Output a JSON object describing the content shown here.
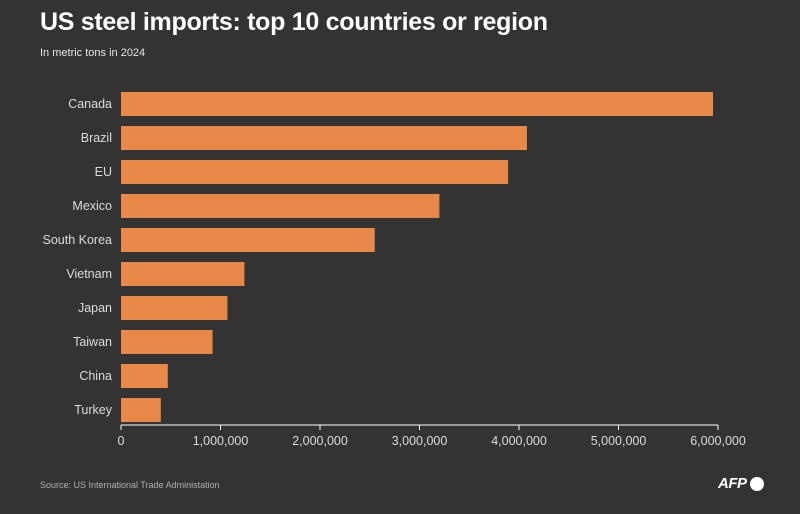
{
  "header": {
    "title": "US steel imports: top 10 countries or region",
    "subtitle": "In metric tons in 2024"
  },
  "footer": {
    "source": "Source: US International Trade Administation",
    "logo_text": "AFP"
  },
  "colors": {
    "background": "#333333",
    "bar": "#E8894A",
    "label": "#dcdcdc",
    "axis": "#ffffff"
  },
  "chart_data": {
    "type": "bar",
    "orientation": "horizontal",
    "categories": [
      "Canada",
      "Brazil",
      "EU",
      "Mexico",
      "South Korea",
      "Vietnam",
      "Japan",
      "Taiwan",
      "China",
      "Turkey"
    ],
    "values": [
      5950000,
      4080000,
      3890000,
      3200000,
      2550000,
      1240000,
      1070000,
      920000,
      470000,
      400000
    ],
    "xlim": [
      0,
      6000000
    ],
    "xticks": [
      0,
      1000000,
      2000000,
      3000000,
      4000000,
      5000000,
      6000000
    ],
    "xtick_labels": [
      "0",
      "1,000,000",
      "2,000,000",
      "3,000,000",
      "4,000,000",
      "5,000,000",
      "6,000,000"
    ],
    "grid": false,
    "legend": "none"
  }
}
